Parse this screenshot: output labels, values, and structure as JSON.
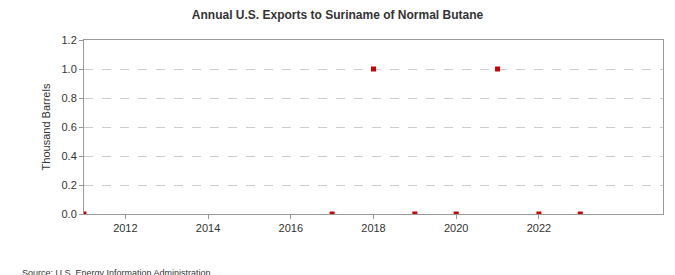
{
  "chart_data": {
    "type": "scatter",
    "title": "Annual U.S. Exports to Suriname of Normal Butane",
    "y_label": "Thousand Barrels",
    "annotations": [
      "Source: U.S. Energy Information Administration"
    ],
    "x": [
      2011,
      2017,
      2018,
      2019,
      2020,
      2021,
      2022,
      2023
    ],
    "values": [
      0,
      0,
      1,
      0,
      0,
      1,
      0,
      0
    ],
    "color": "#cc0000",
    "marker": "square",
    "xlim": [
      2011,
      2025
    ],
    "xticks": [
      2012,
      2014,
      2016,
      2018,
      2020,
      2022
    ],
    "ylim": [
      0,
      1.2
    ],
    "yticks": [
      {
        "value": 0,
        "label": "0.0"
      },
      {
        "value": 0.2,
        "label": "0.2"
      },
      {
        "value": 0.4,
        "label": "0.4"
      },
      {
        "value": 0.6,
        "label": "0.6"
      },
      {
        "value": 0.8,
        "label": "0.8"
      },
      {
        "value": 1,
        "label": "1.0"
      },
      {
        "value": 1.2,
        "label": "1.2"
      }
    ],
    "grid": true
  }
}
